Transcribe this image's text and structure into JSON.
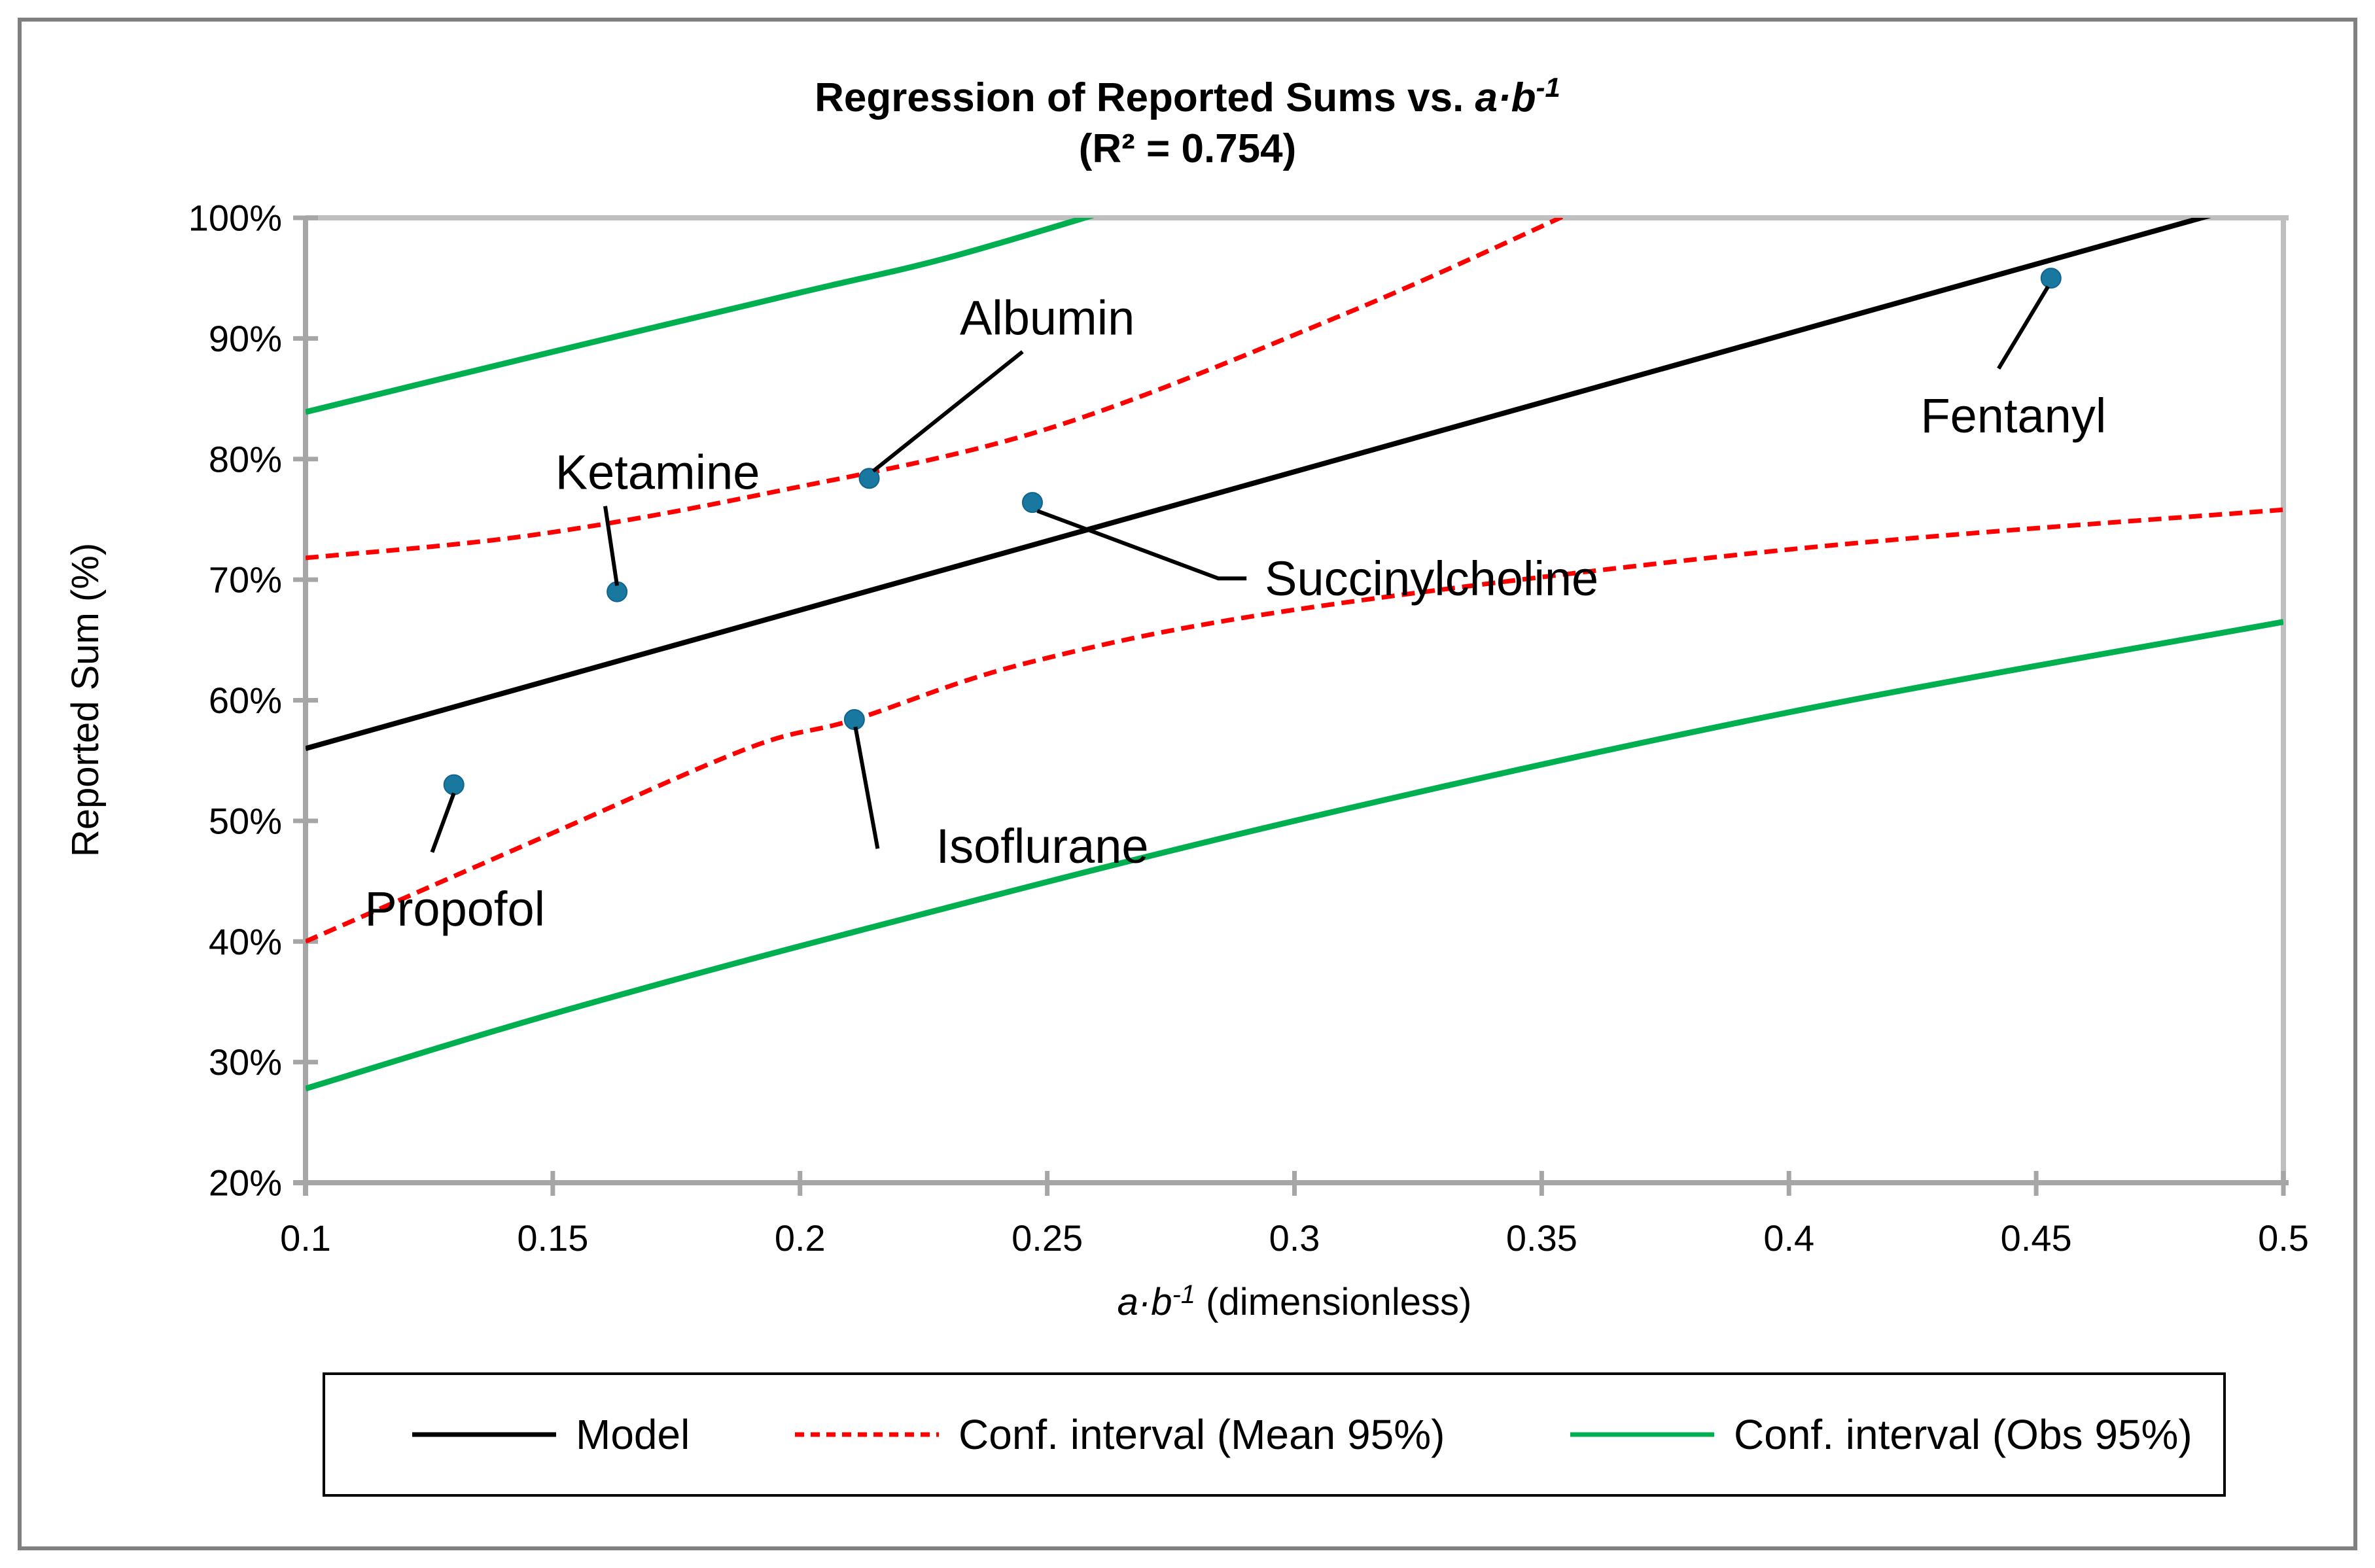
{
  "figure": {
    "title_prefix": "Regression of Reported Sums vs. ",
    "title_math": "a·b",
    "title_sup": "-1",
    "subtitle": "(R² = 0.754)"
  },
  "axes": {
    "x": {
      "title_math": "a·b",
      "title_sup": "-1",
      "title_rest": " (dimensionless)",
      "min": 0.1,
      "max": 0.5,
      "ticks": [
        {
          "v": 0.1,
          "label": "0.1"
        },
        {
          "v": 0.15,
          "label": "0.15"
        },
        {
          "v": 0.2,
          "label": "0.2"
        },
        {
          "v": 0.25,
          "label": "0.25"
        },
        {
          "v": 0.3,
          "label": "0.3"
        },
        {
          "v": 0.35,
          "label": "0.35"
        },
        {
          "v": 0.4,
          "label": "0.4"
        },
        {
          "v": 0.45,
          "label": "0.45"
        },
        {
          "v": 0.5,
          "label": "0.5"
        }
      ]
    },
    "y": {
      "title": "Reported Sum (%)",
      "min": 20,
      "max": 100,
      "ticks": [
        {
          "v": 20,
          "label": "20%"
        },
        {
          "v": 30,
          "label": "30%"
        },
        {
          "v": 40,
          "label": "40%"
        },
        {
          "v": 50,
          "label": "50%"
        },
        {
          "v": 60,
          "label": "60%"
        },
        {
          "v": 70,
          "label": "70%"
        },
        {
          "v": 80,
          "label": "80%"
        },
        {
          "v": 90,
          "label": "90%"
        },
        {
          "v": 100,
          "label": "100%"
        }
      ]
    }
  },
  "chart_data": {
    "type": "scatter",
    "title": "Regression of Reported Sums vs. a·b⁻¹ (R² = 0.754)",
    "xlabel": "a·b⁻¹ (dimensionless)",
    "ylabel": "Reported Sum (%)",
    "xlim": [
      0.1,
      0.5
    ],
    "ylim": [
      20,
      100
    ],
    "grid": false,
    "points": [
      {
        "label": "Propofol",
        "x": 0.13,
        "y": 53.0
      },
      {
        "label": "Ketamine",
        "x": 0.163,
        "y": 69.0
      },
      {
        "label": "Albumin",
        "x": 0.214,
        "y": 78.4
      },
      {
        "label": "Isoflurane",
        "x": 0.211,
        "y": 58.4
      },
      {
        "label": "Succinylcholine",
        "x": 0.247,
        "y": 76.4
      },
      {
        "label": "Fentanyl",
        "x": 0.453,
        "y": 95.0
      }
    ],
    "model_line": [
      [
        0.1,
        56.0
      ],
      [
        0.5,
        101.9
      ]
    ],
    "conf_mean_upper": [
      [
        0.1,
        71.8
      ],
      [
        0.146,
        73.7
      ],
      [
        0.195,
        77.3
      ],
      [
        0.25,
        82.5
      ],
      [
        0.31,
        92.0
      ],
      [
        0.358,
        100.8
      ]
    ],
    "conf_mean_lower": [
      [
        0.1,
        40.0
      ],
      [
        0.15,
        49.0
      ],
      [
        0.19,
        56.1
      ],
      [
        0.211,
        58.4
      ],
      [
        0.246,
        63.1
      ],
      [
        0.3,
        67.5
      ],
      [
        0.4,
        72.5
      ],
      [
        0.5,
        75.8
      ]
    ],
    "conf_obs_upper": [
      [
        0.1,
        83.9
      ],
      [
        0.15,
        88.9
      ],
      [
        0.2,
        93.8
      ],
      [
        0.23,
        96.7
      ],
      [
        0.264,
        100.8
      ]
    ],
    "conf_obs_lower": [
      [
        0.1,
        27.8
      ],
      [
        0.15,
        34.0
      ],
      [
        0.211,
        40.8
      ],
      [
        0.3,
        50.0
      ],
      [
        0.4,
        59.0
      ],
      [
        0.5,
        66.5
      ]
    ]
  },
  "annotations": [
    {
      "label": "Propofol",
      "anchor": "middle",
      "leader": [
        [
          0.13,
          52.3
        ],
        [
          0.1256,
          47.4
        ]
      ],
      "label_at": [
        0.1302,
        42.7
      ]
    },
    {
      "label": "Ketamine",
      "anchor": "middle",
      "leader": [
        [
          0.163,
          69.5
        ],
        [
          0.1606,
          76.1
        ]
      ],
      "label_at": [
        0.1712,
        78.9
      ]
    },
    {
      "label": "Albumin",
      "anchor": "middle",
      "leader": [
        [
          0.2148,
          79.0
        ],
        [
          0.245,
          88.9
        ]
      ],
      "label_at": [
        0.25,
        91.7
      ]
    },
    {
      "label": "Isoflurane",
      "anchor": "middle",
      "leader": [
        [
          0.2112,
          57.8
        ],
        [
          0.2157,
          47.7
        ]
      ],
      "label_at": [
        0.249,
        47.9
      ]
    },
    {
      "label": "Succinylcholine",
      "anchor": "start",
      "leader": [
        [
          0.248,
          75.7
        ],
        [
          0.2846,
          70.1
        ],
        [
          0.2903,
          70.1
        ]
      ],
      "label_at": [
        0.294,
        70.1
      ]
    },
    {
      "label": "Fentanyl",
      "anchor": "middle",
      "leader": [
        [
          0.4524,
          94.3
        ],
        [
          0.4424,
          87.5
        ]
      ],
      "label_at": [
        0.4454,
        83.6
      ]
    }
  ],
  "legend": {
    "items": [
      {
        "label": "Model",
        "color": "#000000",
        "style": "solid"
      },
      {
        "label": "Conf. interval (Mean 95%)",
        "color": "#FF0000",
        "style": "dashed"
      },
      {
        "label": "Conf. interval (Obs 95%)",
        "color": "#00B050",
        "style": "solid"
      }
    ]
  },
  "colors": {
    "point": "#1878A0",
    "point_edge": "#11648C",
    "model": "#000000",
    "mean_ci": "#FF0000",
    "obs_ci": "#00B050",
    "axis": "#A6A6A6",
    "plot_border": "#BFBFBF",
    "outer_border": "#808080",
    "text": "#000000"
  }
}
